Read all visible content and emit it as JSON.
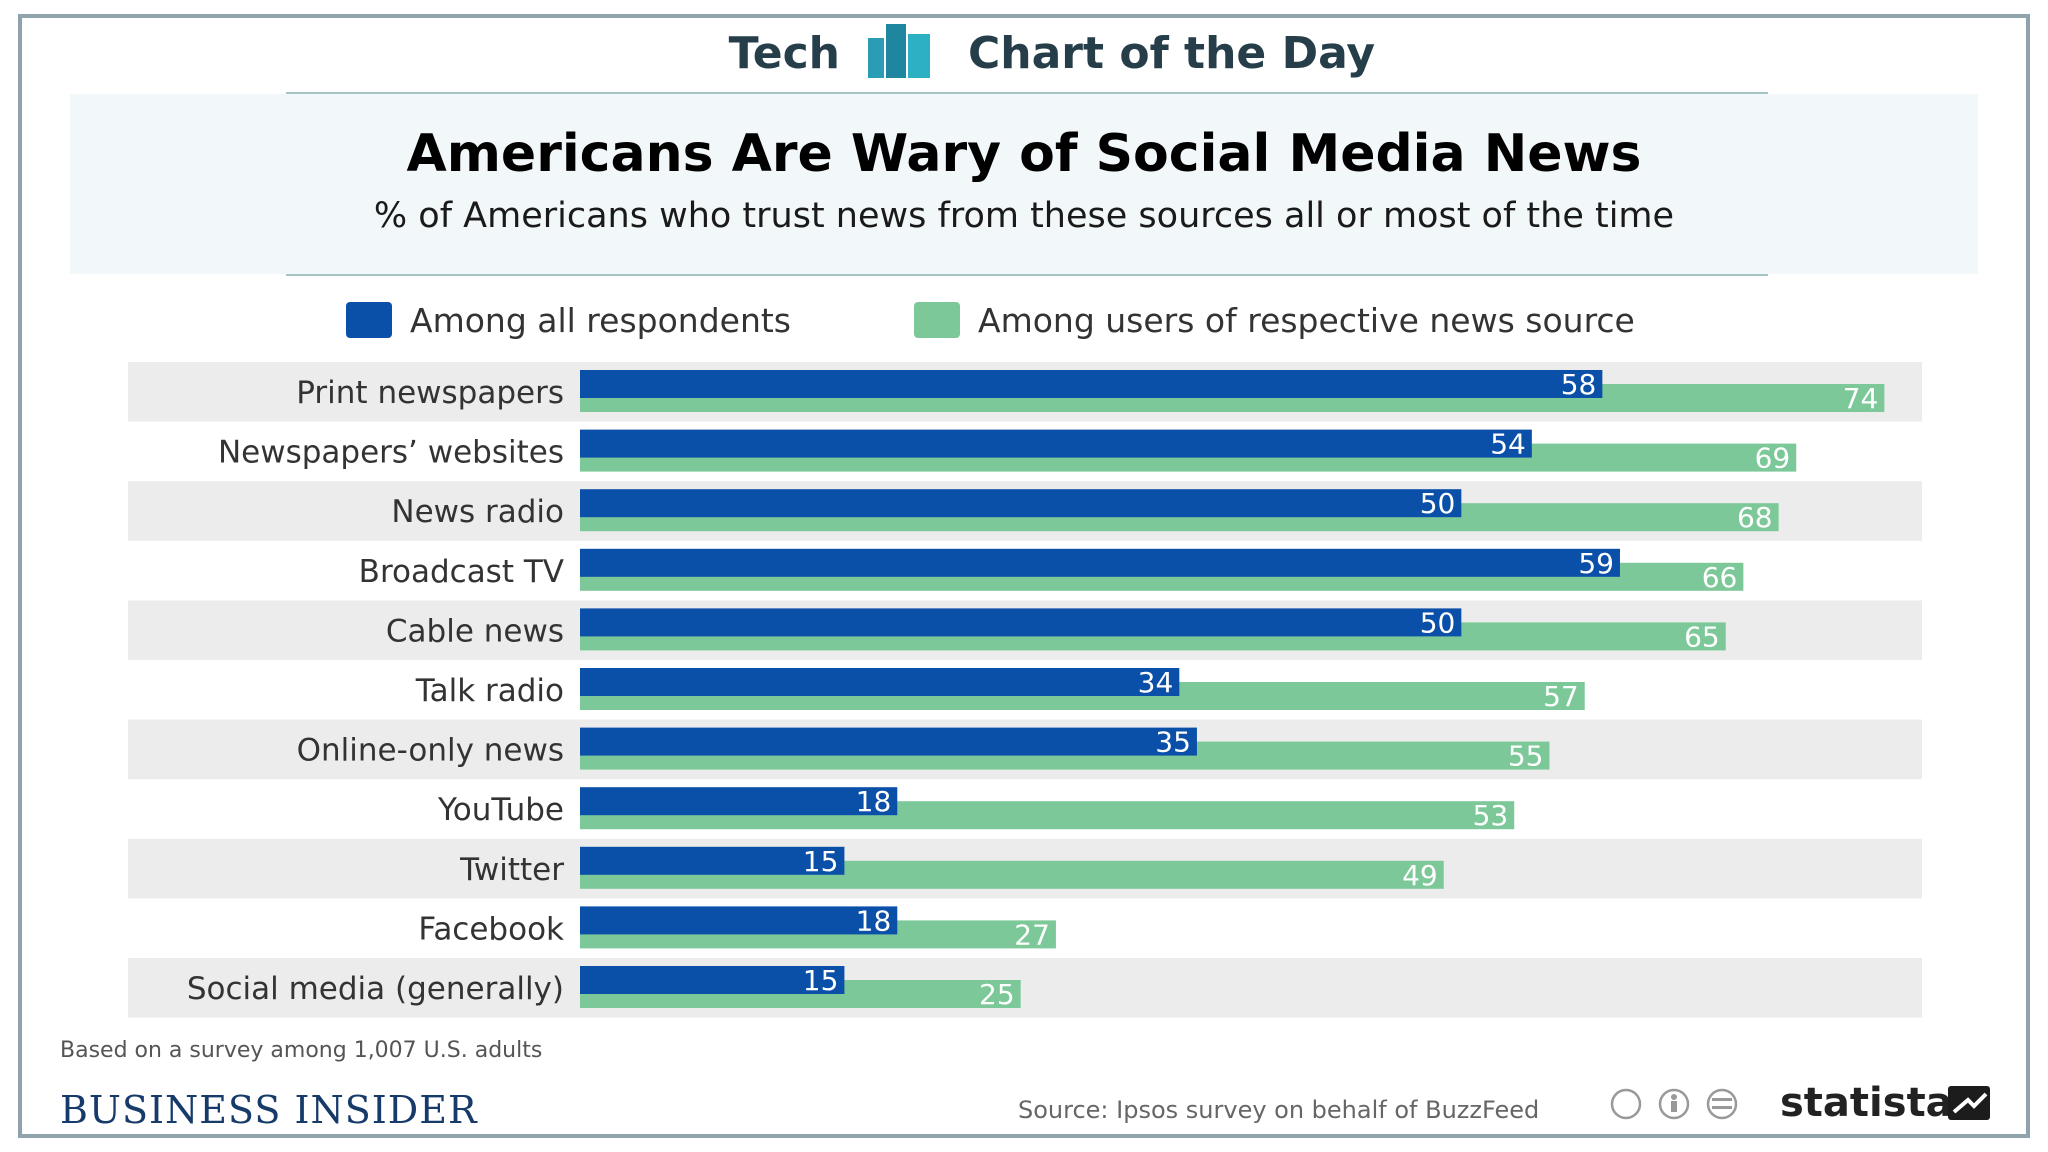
{
  "header": {
    "left": "Tech",
    "right": "Chart of the Day"
  },
  "colors": {
    "all": "#0a4fa8",
    "users": "#7cc898",
    "band": "#ececec",
    "label_text": "#ffffff"
  },
  "footer": {
    "note": "Based on a survey among 1,007 U.S. adults",
    "brand": "BUSINESS INSIDER",
    "source": "Source: Ipsos survey on behalf of BuzzFeed",
    "statista": "statista"
  },
  "chart_data": {
    "type": "bar",
    "orientation": "horizontal",
    "title": "Americans Are Wary of Social Media News",
    "subtitle": "% of Americans who trust news from these sources all or most of the time",
    "categories": [
      "Print newspapers",
      "Newspapers’ websites",
      "News radio",
      "Broadcast TV",
      "Cable news",
      "Talk radio",
      "Online-only news",
      "YouTube",
      "Twitter",
      "Facebook",
      "Social media (generally)"
    ],
    "series": [
      {
        "name": "Among all respondents",
        "values": [
          58,
          54,
          50,
          59,
          50,
          34,
          35,
          18,
          15,
          18,
          15
        ]
      },
      {
        "name": "Among users of respective news source",
        "values": [
          74,
          69,
          68,
          66,
          65,
          57,
          55,
          53,
          49,
          27,
          25
        ]
      }
    ],
    "xlim": [
      0,
      75
    ],
    "legend": "top"
  }
}
